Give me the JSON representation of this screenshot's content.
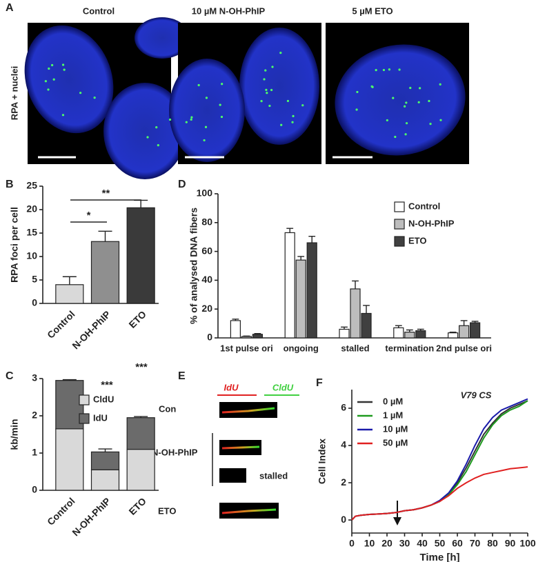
{
  "panel_a": {
    "label": "A",
    "titles": [
      "Control",
      "10 µM N-OH-PhIP",
      "5 µM ETO"
    ],
    "ylabel": "RPA + nuclei"
  },
  "panel_e": {
    "label": "E",
    "channels": [
      "IdU",
      "CldU"
    ],
    "rows": [
      "Con",
      "N-OH-PhIP",
      "ETO"
    ],
    "note": "stalled"
  },
  "chart_data": [
    {
      "panel_label": "B",
      "type": "bar",
      "ylabel": "RPA foci per cell",
      "categories": [
        "Control",
        "N-OH-PhIP",
        "ETO"
      ],
      "values": [
        4,
        13.2,
        20.4
      ],
      "errors": [
        1.7,
        2.2,
        1.6
      ],
      "colors": [
        "#d9d9d9",
        "#8f8f8f",
        "#3a3a3a"
      ],
      "ylim": [
        0,
        25
      ],
      "yticks": [
        0,
        5,
        10,
        15,
        20,
        25
      ],
      "annotations": [
        "*",
        "**"
      ]
    },
    {
      "panel_label": "C",
      "type": "bar",
      "stacked": true,
      "ylabel": "kb/min",
      "categories": [
        "Control",
        "N-OH-PhIP",
        "ETO"
      ],
      "series": [
        {
          "name": "CldU",
          "color": "#d9d9d9",
          "values": [
            1.65,
            0.55,
            1.1
          ],
          "errors": [
            0.05,
            0.05,
            0.03
          ]
        },
        {
          "name": "IdU",
          "color": "#6b6b6b",
          "values": [
            1.3,
            0.48,
            0.85
          ],
          "errors": [
            0.02,
            0.08,
            0.03
          ]
        }
      ],
      "ylim": [
        0,
        3
      ],
      "yticks": [
        0,
        1,
        2,
        3
      ],
      "annotations": [
        "***",
        "***"
      ]
    },
    {
      "panel_label": "D",
      "type": "bar",
      "ylabel": "% of analysed DNA fibers",
      "categories": [
        "1st pulse ori",
        "ongoing",
        "stalled",
        "termination",
        "2nd pulse ori"
      ],
      "series": [
        {
          "name": "Control",
          "color": "#ffffff",
          "values": [
            12,
            73,
            6,
            7,
            3.5
          ],
          "errors": [
            1,
            3,
            1.5,
            1.5,
            0.5
          ]
        },
        {
          "name": "N-OH-PhIP",
          "color": "#bdbdbd",
          "values": [
            1,
            54,
            34,
            4,
            8.5
          ],
          "errors": [
            0.3,
            2.5,
            5.5,
            1.5,
            3.5
          ]
        },
        {
          "name": "ETO",
          "color": "#404040",
          "values": [
            2.5,
            66,
            17,
            5,
            10.5
          ],
          "errors": [
            0.5,
            4.5,
            5.5,
            1,
            1
          ]
        }
      ],
      "ylim": [
        0,
        100
      ],
      "yticks": [
        0,
        20,
        40,
        60,
        80,
        100
      ]
    },
    {
      "panel_label": "F",
      "type": "line",
      "subtitle": "V79 CS",
      "xlabel": "Time [h]",
      "ylabel": "Cell Index",
      "x": [
        0,
        2,
        5,
        10,
        15,
        20,
        25,
        30,
        35,
        40,
        45,
        50,
        55,
        60,
        65,
        70,
        75,
        80,
        85,
        90,
        95,
        100
      ],
      "series": [
        {
          "name": "0 µM",
          "color": "#333333",
          "values": [
            0,
            0.2,
            0.25,
            0.3,
            0.32,
            0.35,
            0.4,
            0.5,
            0.55,
            0.65,
            0.8,
            1.0,
            1.4,
            2.0,
            2.8,
            3.7,
            4.6,
            5.2,
            5.7,
            6.0,
            6.2,
            6.4
          ]
        },
        {
          "name": "1 µM",
          "color": "#1e9a1e",
          "values": [
            0,
            0.2,
            0.25,
            0.3,
            0.32,
            0.35,
            0.4,
            0.5,
            0.55,
            0.65,
            0.8,
            1.0,
            1.35,
            1.9,
            2.6,
            3.5,
            4.4,
            5.1,
            5.6,
            5.9,
            6.1,
            6.4
          ]
        },
        {
          "name": "10 µM",
          "color": "#1a1aaa",
          "values": [
            0,
            0.2,
            0.25,
            0.3,
            0.32,
            0.35,
            0.4,
            0.5,
            0.55,
            0.65,
            0.8,
            1.05,
            1.45,
            2.1,
            3.0,
            4.0,
            4.9,
            5.5,
            5.9,
            6.1,
            6.3,
            6.5
          ]
        },
        {
          "name": "50 µM",
          "color": "#e02020",
          "values": [
            0,
            0.2,
            0.25,
            0.3,
            0.32,
            0.35,
            0.4,
            0.5,
            0.55,
            0.65,
            0.8,
            1.0,
            1.3,
            1.7,
            2.0,
            2.25,
            2.45,
            2.55,
            2.65,
            2.75,
            2.8,
            2.85
          ]
        }
      ],
      "xlim": [
        0,
        100
      ],
      "xticks": [
        0,
        10,
        20,
        30,
        40,
        50,
        60,
        70,
        80,
        90,
        100
      ],
      "ylim": [
        -0.7,
        7
      ],
      "yticks": [
        0,
        2,
        4,
        6
      ]
    }
  ]
}
